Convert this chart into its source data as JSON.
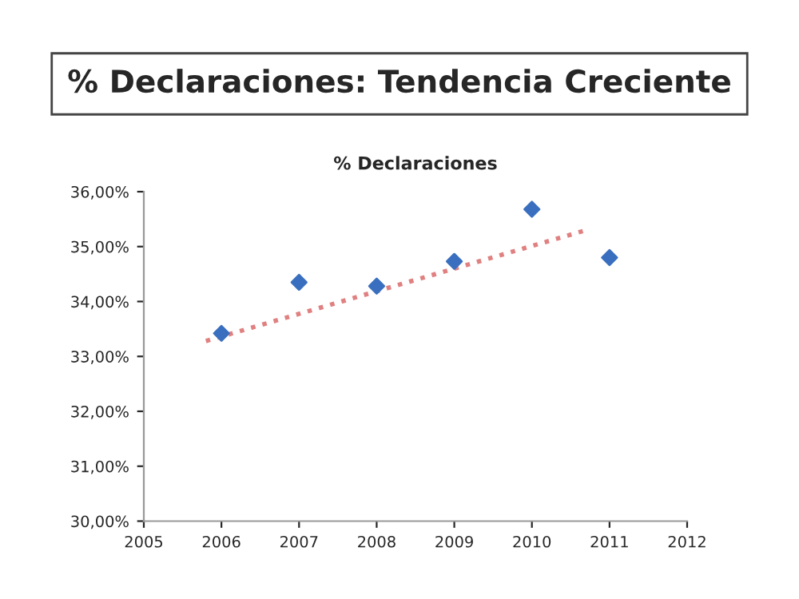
{
  "chart_data": {
    "type": "scatter",
    "title": "% Declaraciones: Tendencia Creciente",
    "subtitle": "% Declaraciones",
    "series": [
      {
        "color": "#3a6fbf",
        "marker": "diamond",
        "x": [
          2006,
          2007,
          2008,
          2009,
          2010,
          2011
        ],
        "values": [
          33.42,
          34.35,
          34.28,
          34.73,
          35.68,
          34.8
        ]
      },
      {
        "type": "line",
        "color": "#e08080",
        "line_style": "dotted",
        "x": [
          2005.8,
          2010.7
        ],
        "values": [
          33.28,
          35.3
        ]
      }
    ],
    "xlim": [
      2005,
      2012
    ],
    "xticks": [
      2005,
      2006,
      2007,
      2008,
      2009,
      2010,
      2011,
      2012
    ],
    "ylim": [
      30,
      36
    ],
    "yticks": [
      {
        "value": 30,
        "label": "30,00%"
      },
      {
        "value": 31,
        "label": "31,00%"
      },
      {
        "value": 32,
        "label": "32,00%"
      },
      {
        "value": 33,
        "label": "33,00%"
      },
      {
        "value": 34,
        "label": "34,00%"
      },
      {
        "value": 35,
        "label": "35,00%"
      },
      {
        "value": 36,
        "label": "36,00%"
      }
    ],
    "grid": false,
    "legend": false
  }
}
